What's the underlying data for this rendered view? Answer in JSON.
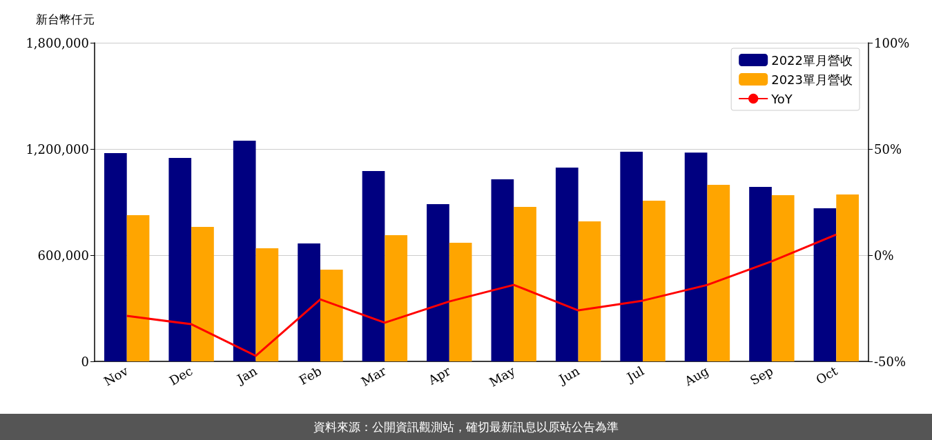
{
  "chart_data": {
    "type": "bar",
    "ylabel": "新台幣仟元",
    "categories": [
      "Nov",
      "Dec",
      "Jan",
      "Feb",
      "Mar",
      "Apr",
      "May",
      "Jun",
      "Jul",
      "Aug",
      "Sep",
      "Oct"
    ],
    "series": [
      {
        "name": "2022單月營收",
        "color": "#000080",
        "values": [
          1177000,
          1149000,
          1247000,
          666000,
          1075000,
          888000,
          1029000,
          1095000,
          1184000,
          1180000,
          986000,
          865000
        ]
      },
      {
        "name": "2023單月營收",
        "color": "#ffa500",
        "values": [
          826000,
          760000,
          639000,
          518000,
          713000,
          670000,
          873000,
          791000,
          908000,
          997000,
          939000,
          943000
        ]
      },
      {
        "name": "YoY",
        "type": "line",
        "axis": "y2",
        "color": "#ff0000",
        "values": [
          -28.6,
          -32.5,
          -47.4,
          -20.8,
          -31.8,
          -21.8,
          -14.0,
          -26.0,
          -21.4,
          -14.0,
          -2.9,
          9.7
        ]
      }
    ],
    "ylim": [
      0,
      1800000
    ],
    "yticks": [
      {
        "value": 0,
        "label": "0"
      },
      {
        "value": 600000,
        "label": "600,000"
      },
      {
        "value": 1200000,
        "label": "1,200,000"
      },
      {
        "value": 1800000,
        "label": "1,800,000"
      }
    ],
    "y2lim": [
      -50,
      100
    ],
    "y2ticks": [
      {
        "value": -50,
        "label": "-50%"
      },
      {
        "value": 0,
        "label": "0%"
      },
      {
        "value": 50,
        "label": "50%"
      },
      {
        "value": 100,
        "label": "100%"
      }
    ],
    "grid": "y",
    "legend": "top right",
    "marker": "none",
    "annotations": [
      "資料來源：公開資訊觀測站，確切最新訊息以原站公告為準"
    ]
  }
}
